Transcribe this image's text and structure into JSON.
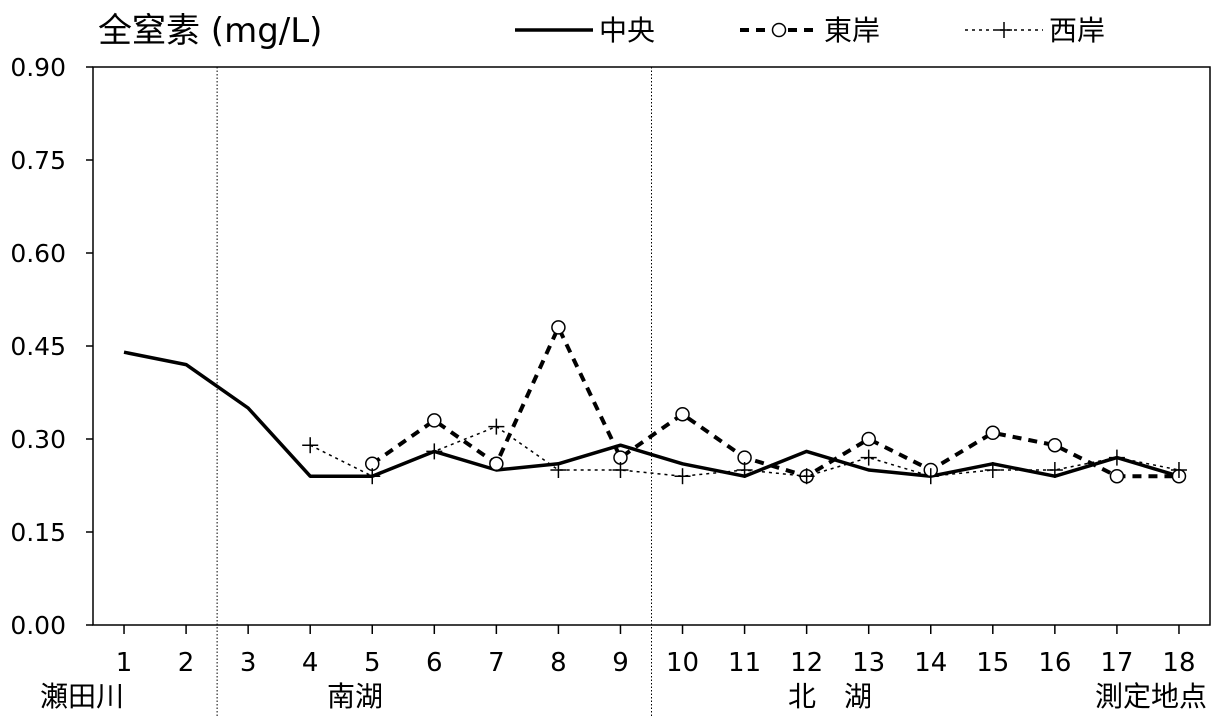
{
  "chart_data": {
    "type": "line",
    "title": "全窒素 (mg/L)",
    "xlabel": "測定地点",
    "ylabel": "",
    "ylim": [
      0,
      0.9
    ],
    "yticks": [
      "0.00",
      "0.15",
      "0.30",
      "0.45",
      "0.60",
      "0.75",
      "0.90"
    ],
    "x": [
      "1",
      "2",
      "3",
      "4",
      "5",
      "6",
      "7",
      "8",
      "9",
      "10",
      "11",
      "12",
      "13",
      "14",
      "15",
      "16",
      "17",
      "18"
    ],
    "regions": [
      {
        "label": "瀬田川",
        "from": 1,
        "to": 2
      },
      {
        "label": "南湖",
        "from": 3,
        "to": 9
      },
      {
        "label": "北　湖",
        "from": 10,
        "to": 18
      }
    ],
    "legend_position": "top",
    "grid": false,
    "series": [
      {
        "name": "中央",
        "style": "solid",
        "marker": "none",
        "values": [
          0.44,
          0.42,
          0.35,
          0.24,
          0.24,
          0.28,
          0.25,
          0.26,
          0.29,
          0.26,
          0.24,
          0.28,
          0.25,
          0.24,
          0.26,
          0.24,
          0.27,
          0.24
        ]
      },
      {
        "name": "東岸",
        "style": "dashed",
        "marker": "circle",
        "values": [
          null,
          null,
          null,
          null,
          0.26,
          0.33,
          0.26,
          0.48,
          0.27,
          0.34,
          0.27,
          0.24,
          0.3,
          0.25,
          0.31,
          0.29,
          0.24,
          0.24
        ]
      },
      {
        "name": "西岸",
        "style": "dotted",
        "marker": "plus",
        "values": [
          null,
          null,
          null,
          0.29,
          0.24,
          0.28,
          0.32,
          0.25,
          0.25,
          0.24,
          0.25,
          0.24,
          0.27,
          0.24,
          0.25,
          0.25,
          0.27,
          0.25
        ]
      }
    ]
  }
}
